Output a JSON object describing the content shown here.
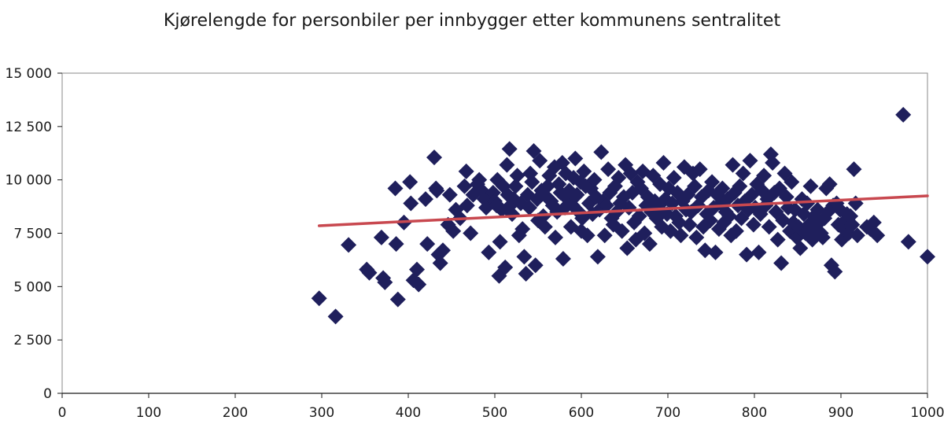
{
  "chart_data": {
    "type": "scatter",
    "title": "Kjørelengde for personbiler per innbygger etter kommunens sentralitet",
    "xlabel": "",
    "ylabel": "",
    "xlim": [
      0,
      1000
    ],
    "ylim": [
      0,
      15000
    ],
    "xticks": [
      0,
      100,
      200,
      300,
      400,
      500,
      600,
      700,
      800,
      900,
      1000
    ],
    "yticks": [
      0,
      2500,
      5000,
      7500,
      10000,
      12500,
      15000
    ],
    "xtick_labels": [
      "0",
      "100",
      "200",
      "300",
      "400",
      "500",
      "600",
      "700",
      "800",
      "900",
      "1000"
    ],
    "ytick_labels": [
      "0",
      "2 500",
      "5 000",
      "7 500",
      "10 000",
      "12 500",
      "15 000"
    ],
    "grid": false,
    "legend": "none",
    "marker": "diamond",
    "marker_color": "#1f1f5c",
    "trend_color": "#c8484f",
    "series": [
      {
        "points": [
          [
            297,
            4450
          ],
          [
            316,
            3600
          ],
          [
            331,
            6950
          ],
          [
            352,
            5800
          ],
          [
            355,
            5650
          ],
          [
            369,
            7300
          ],
          [
            371,
            5400
          ],
          [
            373,
            5200
          ],
          [
            385,
            9600
          ],
          [
            386,
            7000
          ],
          [
            388,
            4400
          ],
          [
            395,
            8000
          ],
          [
            402,
            9900
          ],
          [
            403,
            8900
          ],
          [
            406,
            5300
          ],
          [
            410,
            5800
          ],
          [
            412,
            5100
          ],
          [
            420,
            9100
          ],
          [
            422,
            7000
          ],
          [
            430,
            11050
          ],
          [
            432,
            9600
          ],
          [
            433,
            9500
          ],
          [
            435,
            6500
          ],
          [
            437,
            6100
          ],
          [
            440,
            6700
          ],
          [
            446,
            7900
          ],
          [
            448,
            9300
          ],
          [
            452,
            7600
          ],
          [
            455,
            8600
          ],
          [
            460,
            8200
          ],
          [
            465,
            9700
          ],
          [
            467,
            10400
          ],
          [
            468,
            8800
          ],
          [
            472,
            7500
          ],
          [
            475,
            9300
          ],
          [
            480,
            9800
          ],
          [
            482,
            10000
          ],
          [
            485,
            9500
          ],
          [
            488,
            9100
          ],
          [
            490,
            8700
          ],
          [
            493,
            6600
          ],
          [
            495,
            9200
          ],
          [
            498,
            9400
          ],
          [
            500,
            9000
          ],
          [
            502,
            8800
          ],
          [
            503,
            10000
          ],
          [
            505,
            5500
          ],
          [
            506,
            7100
          ],
          [
            508,
            8600
          ],
          [
            510,
            9700
          ],
          [
            512,
            5900
          ],
          [
            514,
            10700
          ],
          [
            515,
            9300
          ],
          [
            517,
            11450
          ],
          [
            518,
            8800
          ],
          [
            520,
            8400
          ],
          [
            522,
            9100
          ],
          [
            524,
            9700
          ],
          [
            526,
            10200
          ],
          [
            528,
            7400
          ],
          [
            530,
            8900
          ],
          [
            532,
            7700
          ],
          [
            534,
            6400
          ],
          [
            536,
            5600
          ],
          [
            538,
            9300
          ],
          [
            540,
            8700
          ],
          [
            541,
            10300
          ],
          [
            543,
            9900
          ],
          [
            545,
            11350
          ],
          [
            547,
            6000
          ],
          [
            549,
            9100
          ],
          [
            550,
            8100
          ],
          [
            552,
            10900
          ],
          [
            554,
            9500
          ],
          [
            556,
            8300
          ],
          [
            558,
            7800
          ],
          [
            560,
            9200
          ],
          [
            561,
            9700
          ],
          [
            563,
            10200
          ],
          [
            565,
            9000
          ],
          [
            567,
            8800
          ],
          [
            569,
            10600
          ],
          [
            570,
            7300
          ],
          [
            572,
            8500
          ],
          [
            574,
            9800
          ],
          [
            576,
            9400
          ],
          [
            578,
            10800
          ],
          [
            579,
            6300
          ],
          [
            581,
            8700
          ],
          [
            582,
            10300
          ],
          [
            584,
            9100
          ],
          [
            586,
            9500
          ],
          [
            588,
            7800
          ],
          [
            590,
            8800
          ],
          [
            591,
            10100
          ],
          [
            593,
            11000
          ],
          [
            595,
            9300
          ],
          [
            597,
            8500
          ],
          [
            599,
            9900
          ],
          [
            600,
            7600
          ],
          [
            601,
            8200
          ],
          [
            603,
            10400
          ],
          [
            605,
            9700
          ],
          [
            607,
            7400
          ],
          [
            609,
            8900
          ],
          [
            611,
            9600
          ],
          [
            613,
            8400
          ],
          [
            615,
            10000
          ],
          [
            617,
            9200
          ],
          [
            619,
            6400
          ],
          [
            621,
            8600
          ],
          [
            623,
            11300
          ],
          [
            625,
            9000
          ],
          [
            627,
            7400
          ],
          [
            629,
            8800
          ],
          [
            631,
            10500
          ],
          [
            633,
            9400
          ],
          [
            635,
            8200
          ],
          [
            637,
            7900
          ],
          [
            639,
            9700
          ],
          [
            641,
            8500
          ],
          [
            643,
            10100
          ],
          [
            645,
            8900
          ],
          [
            647,
            7600
          ],
          [
            649,
            9200
          ],
          [
            651,
            10700
          ],
          [
            653,
            6800
          ],
          [
            655,
            8700
          ],
          [
            657,
            10300
          ],
          [
            659,
            9400
          ],
          [
            661,
            8000
          ],
          [
            663,
            7200
          ],
          [
            665,
            9900
          ],
          [
            667,
            8300
          ],
          [
            669,
            9600
          ],
          [
            671,
            10400
          ],
          [
            673,
            7500
          ],
          [
            675,
            8800
          ],
          [
            677,
            9200
          ],
          [
            679,
            7000
          ],
          [
            681,
            8500
          ],
          [
            683,
            10200
          ],
          [
            685,
            9000
          ],
          [
            687,
            8200
          ],
          [
            689,
            8700
          ],
          [
            691,
            9800
          ],
          [
            693,
            7800
          ],
          [
            695,
            10800
          ],
          [
            697,
            9100
          ],
          [
            699,
            8400
          ],
          [
            701,
            9600
          ],
          [
            703,
            7600
          ],
          [
            705,
            8900
          ],
          [
            707,
            10100
          ],
          [
            709,
            8300
          ],
          [
            711,
            9400
          ],
          [
            713,
            8000
          ],
          [
            715,
            7400
          ],
          [
            717,
            9000
          ],
          [
            719,
            10600
          ],
          [
            721,
            8600
          ],
          [
            723,
            9300
          ],
          [
            725,
            7900
          ],
          [
            727,
            8500
          ],
          [
            729,
            10300
          ],
          [
            731,
            9700
          ],
          [
            733,
            7300
          ],
          [
            735,
            8800
          ],
          [
            737,
            10500
          ],
          [
            739,
            9200
          ],
          [
            741,
            7800
          ],
          [
            743,
            6700
          ],
          [
            745,
            8400
          ],
          [
            747,
            9500
          ],
          [
            749,
            8100
          ],
          [
            751,
            9900
          ],
          [
            753,
            8700
          ],
          [
            755,
            6600
          ],
          [
            757,
            9300
          ],
          [
            759,
            7700
          ],
          [
            761,
            8900
          ],
          [
            763,
            9600
          ],
          [
            765,
            8000
          ],
          [
            767,
            8500
          ],
          [
            769,
            9100
          ],
          [
            771,
            8300
          ],
          [
            773,
            7400
          ],
          [
            775,
            10700
          ],
          [
            777,
            9400
          ],
          [
            779,
            7600
          ],
          [
            781,
            8800
          ],
          [
            783,
            9700
          ],
          [
            785,
            8200
          ],
          [
            787,
            10300
          ],
          [
            789,
            9000
          ],
          [
            791,
            6500
          ],
          [
            793,
            8600
          ],
          [
            795,
            10900
          ],
          [
            797,
            9300
          ],
          [
            799,
            7900
          ],
          [
            801,
            8700
          ],
          [
            803,
            9800
          ],
          [
            805,
            6600
          ],
          [
            807,
            8400
          ],
          [
            809,
            9500
          ],
          [
            811,
            10200
          ],
          [
            813,
            8800
          ],
          [
            815,
            9100
          ],
          [
            817,
            7800
          ],
          [
            819,
            11200
          ],
          [
            821,
            10800
          ],
          [
            823,
            9400
          ],
          [
            825,
            8500
          ],
          [
            827,
            7200
          ],
          [
            829,
            9600
          ],
          [
            831,
            6100
          ],
          [
            833,
            8100
          ],
          [
            835,
            10300
          ],
          [
            837,
            9200
          ],
          [
            839,
            8700
          ],
          [
            841,
            7600
          ],
          [
            843,
            9900
          ],
          [
            845,
            8000
          ],
          [
            847,
            8600
          ],
          [
            849,
            7300
          ],
          [
            851,
            7800
          ],
          [
            853,
            6800
          ],
          [
            855,
            9100
          ],
          [
            857,
            8400
          ],
          [
            859,
            7500
          ],
          [
            861,
            8900
          ],
          [
            863,
            7900
          ],
          [
            865,
            9700
          ],
          [
            867,
            7200
          ],
          [
            869,
            8300
          ],
          [
            871,
            7700
          ],
          [
            873,
            8600
          ],
          [
            875,
            8000
          ],
          [
            877,
            7500
          ],
          [
            879,
            7300
          ],
          [
            881,
            8200
          ],
          [
            883,
            9600
          ],
          [
            885,
            8500
          ],
          [
            887,
            9800
          ],
          [
            889,
            6000
          ],
          [
            891,
            8800
          ],
          [
            893,
            5700
          ],
          [
            895,
            8900
          ],
          [
            897,
            7900
          ],
          [
            899,
            8600
          ],
          [
            901,
            7200
          ],
          [
            903,
            7700
          ],
          [
            905,
            8100
          ],
          [
            907,
            8400
          ],
          [
            909,
            7500
          ],
          [
            911,
            8300
          ],
          [
            913,
            7900
          ],
          [
            915,
            10500
          ],
          [
            917,
            8900
          ],
          [
            919,
            7400
          ],
          [
            930,
            7800
          ],
          [
            934,
            7700
          ],
          [
            938,
            8000
          ],
          [
            942,
            7400
          ],
          [
            972,
            13050
          ],
          [
            978,
            7100
          ],
          [
            1000,
            6400
          ]
        ]
      }
    ],
    "trendline": {
      "x": [
        297,
        1000
      ],
      "y": [
        7850,
        9250
      ]
    }
  }
}
